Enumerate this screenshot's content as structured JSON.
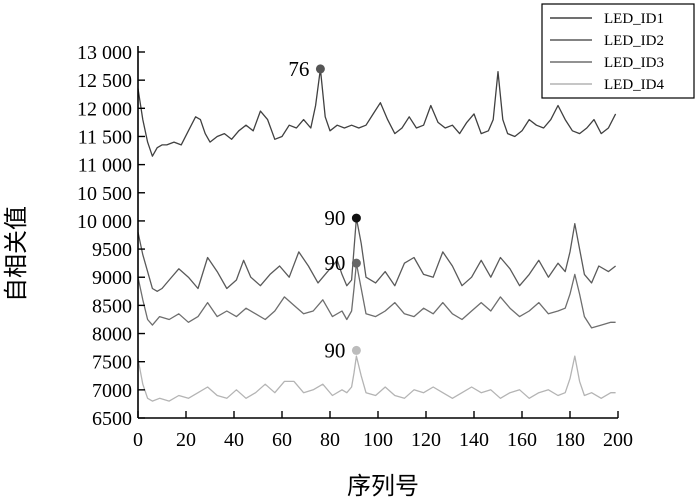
{
  "chart_data": {
    "type": "line",
    "xlabel": "序列号",
    "ylabel": "自相关值",
    "xlim": [
      0,
      200
    ],
    "ylim": [
      6500,
      13000
    ],
    "x_ticks": [
      0,
      20,
      40,
      60,
      80,
      100,
      120,
      140,
      160,
      180,
      200
    ],
    "x_tick_labels": [
      "0",
      "20",
      "40",
      "60",
      "80",
      "100",
      "120",
      "140",
      "160",
      "180",
      "200"
    ],
    "y_ticks": [
      6500,
      7000,
      7500,
      8000,
      8500,
      9000,
      9500,
      10000,
      10500,
      11000,
      11500,
      12000,
      12500,
      13000
    ],
    "y_tick_labels": [
      "6500",
      "7000",
      "7500",
      "8000",
      "8500",
      "9000",
      "9500",
      "10 000",
      "10 500",
      "11 000",
      "11 500",
      "12 000",
      "12 500",
      "13 000"
    ],
    "grid": false,
    "legend_position": "top-right",
    "series": [
      {
        "name": "LED_ID1",
        "color": "#404040",
        "x": [
          0,
          2,
          4,
          6,
          8,
          10,
          12,
          15,
          18,
          21,
          24,
          26,
          28,
          30,
          33,
          36,
          39,
          42,
          45,
          48,
          51,
          54,
          57,
          60,
          63,
          66,
          69,
          72,
          74,
          76,
          78,
          80,
          83,
          86,
          89,
          92,
          95,
          98,
          101,
          104,
          107,
          110,
          113,
          116,
          119,
          122,
          125,
          128,
          131,
          134,
          137,
          140,
          143,
          146,
          148,
          150,
          152,
          154,
          157,
          160,
          163,
          166,
          169,
          172,
          175,
          178,
          181,
          184,
          187,
          190,
          193,
          196,
          199
        ],
        "y": [
          12350,
          11800,
          11400,
          11150,
          11300,
          11350,
          11350,
          11400,
          11350,
          11600,
          11850,
          11800,
          11550,
          11400,
          11500,
          11550,
          11450,
          11600,
          11700,
          11600,
          11950,
          11800,
          11450,
          11500,
          11700,
          11650,
          11800,
          11650,
          12050,
          12700,
          11850,
          11600,
          11700,
          11650,
          11700,
          11650,
          11700,
          11900,
          12100,
          11800,
          11550,
          11650,
          11850,
          11650,
          11700,
          12050,
          11750,
          11650,
          11700,
          11550,
          11750,
          11900,
          11550,
          11600,
          11800,
          12650,
          11800,
          11550,
          11500,
          11600,
          11800,
          11700,
          11650,
          11800,
          12050,
          11800,
          11600,
          11550,
          11650,
          11800,
          11550,
          11650,
          11900
        ]
      },
      {
        "name": "LED_ID2",
        "color": "#5a5a5a",
        "x": [
          0,
          2,
          4,
          6,
          8,
          10,
          13,
          17,
          21,
          25,
          29,
          33,
          37,
          41,
          44,
          47,
          51,
          55,
          59,
          63,
          67,
          71,
          75,
          79,
          83,
          85,
          87,
          89,
          90,
          91,
          93,
          95,
          99,
          103,
          107,
          111,
          115,
          119,
          123,
          127,
          131,
          135,
          139,
          143,
          147,
          151,
          155,
          159,
          163,
          167,
          171,
          175,
          178,
          180,
          182,
          184,
          186,
          189,
          192,
          196,
          199
        ],
        "y": [
          9800,
          9400,
          9100,
          8800,
          8750,
          8800,
          8950,
          9150,
          9000,
          8800,
          9350,
          9100,
          8800,
          8950,
          9300,
          9000,
          8850,
          9050,
          9200,
          9000,
          9450,
          9200,
          8900,
          9100,
          9300,
          9050,
          8850,
          8950,
          9500,
          10050,
          9600,
          9000,
          8900,
          9100,
          8850,
          9250,
          9350,
          9050,
          9000,
          9450,
          9200,
          8850,
          9000,
          9300,
          9000,
          9350,
          9150,
          8850,
          9050,
          9300,
          9000,
          9250,
          9100,
          9450,
          9950,
          9500,
          9050,
          8900,
          9200,
          9100,
          9200
        ]
      },
      {
        "name": "LED_ID3",
        "color": "#6e6e6e",
        "x": [
          0,
          2,
          4,
          6,
          9,
          13,
          17,
          21,
          25,
          29,
          33,
          37,
          41,
          45,
          49,
          53,
          57,
          61,
          65,
          69,
          73,
          77,
          81,
          85,
          87,
          89,
          90,
          91,
          93,
          95,
          99,
          103,
          107,
          111,
          115,
          119,
          123,
          127,
          131,
          135,
          139,
          143,
          147,
          151,
          155,
          159,
          163,
          167,
          171,
          175,
          178,
          180,
          182,
          184,
          186,
          189,
          193,
          197,
          199
        ],
        "y": [
          9000,
          8600,
          8250,
          8150,
          8300,
          8250,
          8350,
          8200,
          8300,
          8550,
          8300,
          8400,
          8300,
          8450,
          8350,
          8250,
          8400,
          8650,
          8500,
          8350,
          8400,
          8600,
          8300,
          8400,
          8250,
          8400,
          8800,
          9250,
          8800,
          8350,
          8300,
          8400,
          8550,
          8350,
          8300,
          8450,
          8350,
          8550,
          8350,
          8250,
          8400,
          8550,
          8400,
          8650,
          8450,
          8300,
          8400,
          8550,
          8350,
          8400,
          8450,
          8700,
          9050,
          8700,
          8300,
          8100,
          8150,
          8200,
          8200
        ]
      },
      {
        "name": "LED_ID4",
        "color": "#b4b4b4",
        "x": [
          0,
          2,
          4,
          6,
          9,
          13,
          17,
          21,
          25,
          29,
          33,
          37,
          41,
          45,
          49,
          53,
          57,
          61,
          65,
          69,
          73,
          77,
          81,
          85,
          87,
          89,
          90,
          91,
          93,
          95,
          99,
          103,
          107,
          111,
          115,
          119,
          123,
          127,
          131,
          135,
          139,
          143,
          147,
          151,
          155,
          159,
          163,
          167,
          171,
          175,
          178,
          180,
          182,
          184,
          186,
          189,
          193,
          197,
          199
        ],
        "y": [
          7550,
          7100,
          6850,
          6800,
          6850,
          6800,
          6900,
          6850,
          6950,
          7050,
          6900,
          6850,
          7000,
          6850,
          6950,
          7100,
          6950,
          7150,
          7150,
          6950,
          7000,
          7100,
          6900,
          7000,
          6950,
          7050,
          7300,
          7600,
          7250,
          6950,
          6900,
          7050,
          6900,
          6850,
          7000,
          6950,
          7050,
          6950,
          6850,
          6950,
          7050,
          6950,
          7000,
          6850,
          6950,
          7000,
          6850,
          6950,
          7000,
          6900,
          6950,
          7200,
          7600,
          7150,
          6900,
          6950,
          6850,
          6950,
          6950
        ]
      }
    ],
    "annotations": [
      {
        "label": "76",
        "x": 76,
        "y": 12700,
        "color": "#555555"
      },
      {
        "label": "90",
        "x": 91,
        "y": 10050,
        "color": "#111111"
      },
      {
        "label": "90",
        "x": 91,
        "y": 9250,
        "color": "#666666"
      },
      {
        "label": "90",
        "x": 91,
        "y": 7700,
        "color": "#bcbcbc"
      }
    ]
  }
}
